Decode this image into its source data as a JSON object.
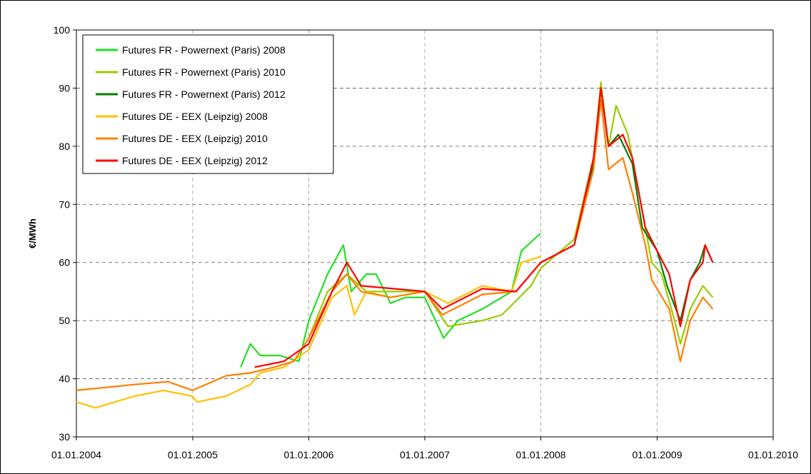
{
  "chart_data": {
    "type": "line",
    "y_label": "€/MWh",
    "xlim": [
      "01.01.2004",
      "01.01.2010"
    ],
    "xticks": [
      "01.01.2004",
      "01.01.2005",
      "01.01.2006",
      "01.01.2007",
      "01.01.2008",
      "01.01.2009",
      "01.01.2010"
    ],
    "ylim": [
      30,
      100
    ],
    "yticks": [
      30,
      40,
      50,
      60,
      70,
      80,
      90,
      100
    ],
    "grid": true,
    "legend": "top-left",
    "series": [
      {
        "name": "Futures FR - Powernext (Paris) 2008",
        "color": "#22e022",
        "x": [
          "01.06.2005",
          "01.07.2005",
          "01.08.2005",
          "01.10.2005",
          "01.12.2005",
          "01.01.2006",
          "01.03.2006",
          "20.04.2006",
          "15.05.2006",
          "01.07.2006",
          "01.08.2006",
          "15.09.2006",
          "01.11.2006",
          "01.01.2007",
          "01.03.2007",
          "15.04.2007",
          "01.07.2007",
          "01.08.2007",
          "01.10.2007",
          "01.11.2007",
          "31.12.2007"
        ],
        "values": [
          42,
          46,
          44,
          44,
          43,
          50,
          58,
          63,
          55,
          58,
          58,
          53,
          54,
          54,
          47,
          50,
          52,
          53,
          55,
          62,
          65
        ]
      },
      {
        "name": "Futures FR - Powernext (Paris) 2010",
        "color": "#99cc00",
        "x": [
          "01.01.2006",
          "01.03.2006",
          "01.05.2006",
          "01.07.2006",
          "01.10.2006",
          "01.01.2007",
          "15.03.2007",
          "01.07.2007",
          "01.09.2007",
          "01.12.2007",
          "01.01.2008",
          "15.04.2008",
          "15.06.2008",
          "08.07.2008",
          "01.08.2008",
          "25.08.2008",
          "01.10.2008",
          "01.11.2008",
          "15.12.2008",
          "15.01.2009",
          "25.02.2009",
          "15.03.2009",
          "15.04.2009",
          "25.05.2009",
          "25.06.2009"
        ],
        "values": [
          47,
          55,
          58,
          55,
          55,
          55,
          49,
          50,
          51,
          56,
          59,
          64,
          78,
          91,
          80,
          87,
          82,
          73,
          60,
          58,
          50,
          46,
          52,
          56,
          54
        ]
      },
      {
        "name": "Futures FR - Powernext (Paris) 2012",
        "color": "#008000",
        "x": [
          "01.01.2008",
          "15.04.2008",
          "15.06.2008",
          "08.07.2008",
          "01.08.2008",
          "01.09.2008",
          "15.10.2008",
          "15.11.2008",
          "01.01.2009",
          "01.02.2009",
          "15.03.2009",
          "15.04.2009",
          "15.05.2009",
          "01.06.2009",
          "25.06.2009"
        ],
        "values": [
          60,
          63,
          77,
          90,
          80,
          82,
          77,
          66,
          62,
          56,
          50,
          57,
          60,
          63,
          60
        ]
      },
      {
        "name": "Futures DE - EEX (Leipzig) 2008",
        "color": "#ffc000",
        "x": [
          "01.01.2004",
          "01.03.2004",
          "01.07.2004",
          "01.10.2004",
          "31.12.2004",
          "15.01.2005",
          "15.04.2005",
          "01.07.2005",
          "01.08.2005",
          "15.10.2005",
          "01.01.2006",
          "15.03.2006",
          "01.05.2006",
          "25.05.2006",
          "01.07.2006",
          "15.09.2006",
          "01.01.2007",
          "15.03.2007",
          "01.07.2007",
          "01.10.2007",
          "01.11.2007",
          "31.12.2007"
        ],
        "values": [
          36,
          35,
          37,
          38,
          37,
          36,
          37,
          39,
          41,
          42,
          45,
          54,
          56,
          51,
          55,
          54,
          55,
          53,
          56,
          55,
          60,
          61
        ]
      },
      {
        "name": "Futures DE - EEX (Leipzig) 2010",
        "color": "#ff7f00",
        "x": [
          "01.01.2004",
          "01.07.2004",
          "15.10.2004",
          "31.12.2004",
          "15.04.2005",
          "01.07.2005",
          "15.09.2005",
          "15.11.2005",
          "01.01.2006",
          "15.03.2006",
          "01.05.2006",
          "15.06.2006",
          "15.09.2006",
          "01.01.2007",
          "25.02.2007",
          "01.07.2007",
          "15.10.2007",
          "01.01.2008",
          "15.04.2008",
          "15.06.2008",
          "08.07.2008",
          "01.08.2008",
          "15.09.2008",
          "15.10.2008",
          "25.11.2008",
          "15.12.2008",
          "08.02.2009",
          "15.03.2009",
          "15.04.2009",
          "25.05.2009",
          "25.06.2009"
        ],
        "values": [
          38,
          39,
          39.5,
          38,
          40.5,
          41,
          42,
          43,
          47,
          55,
          58,
          55,
          54,
          55,
          51,
          54.5,
          55,
          60,
          63,
          76,
          88,
          76,
          78,
          72,
          63,
          57,
          52,
          43,
          50,
          54,
          52
        ]
      },
      {
        "name": "Futures DE - EEX (Leipzig) 2012",
        "color": "#ff0000",
        "x": [
          "15.07.2005",
          "15.10.2005",
          "01.01.2006",
          "15.03.2006",
          "01.05.2006",
          "15.06.2006",
          "01.01.2007",
          "25.02.2007",
          "01.07.2007",
          "15.10.2007",
          "01.01.2008",
          "15.04.2008",
          "15.06.2008",
          "08.07.2008",
          "01.08.2008",
          "15.09.2008",
          "15.10.2008",
          "25.11.2008",
          "01.01.2009",
          "08.02.2009",
          "15.03.2009",
          "15.04.2009",
          "25.05.2009",
          "01.06.2009",
          "25.06.2009"
        ],
        "values": [
          42,
          43,
          46,
          55,
          60,
          56,
          55,
          52,
          55.5,
          55,
          60,
          63,
          78,
          90,
          80,
          82,
          78,
          66,
          62,
          58,
          49,
          57,
          60,
          63,
          60
        ]
      }
    ]
  }
}
